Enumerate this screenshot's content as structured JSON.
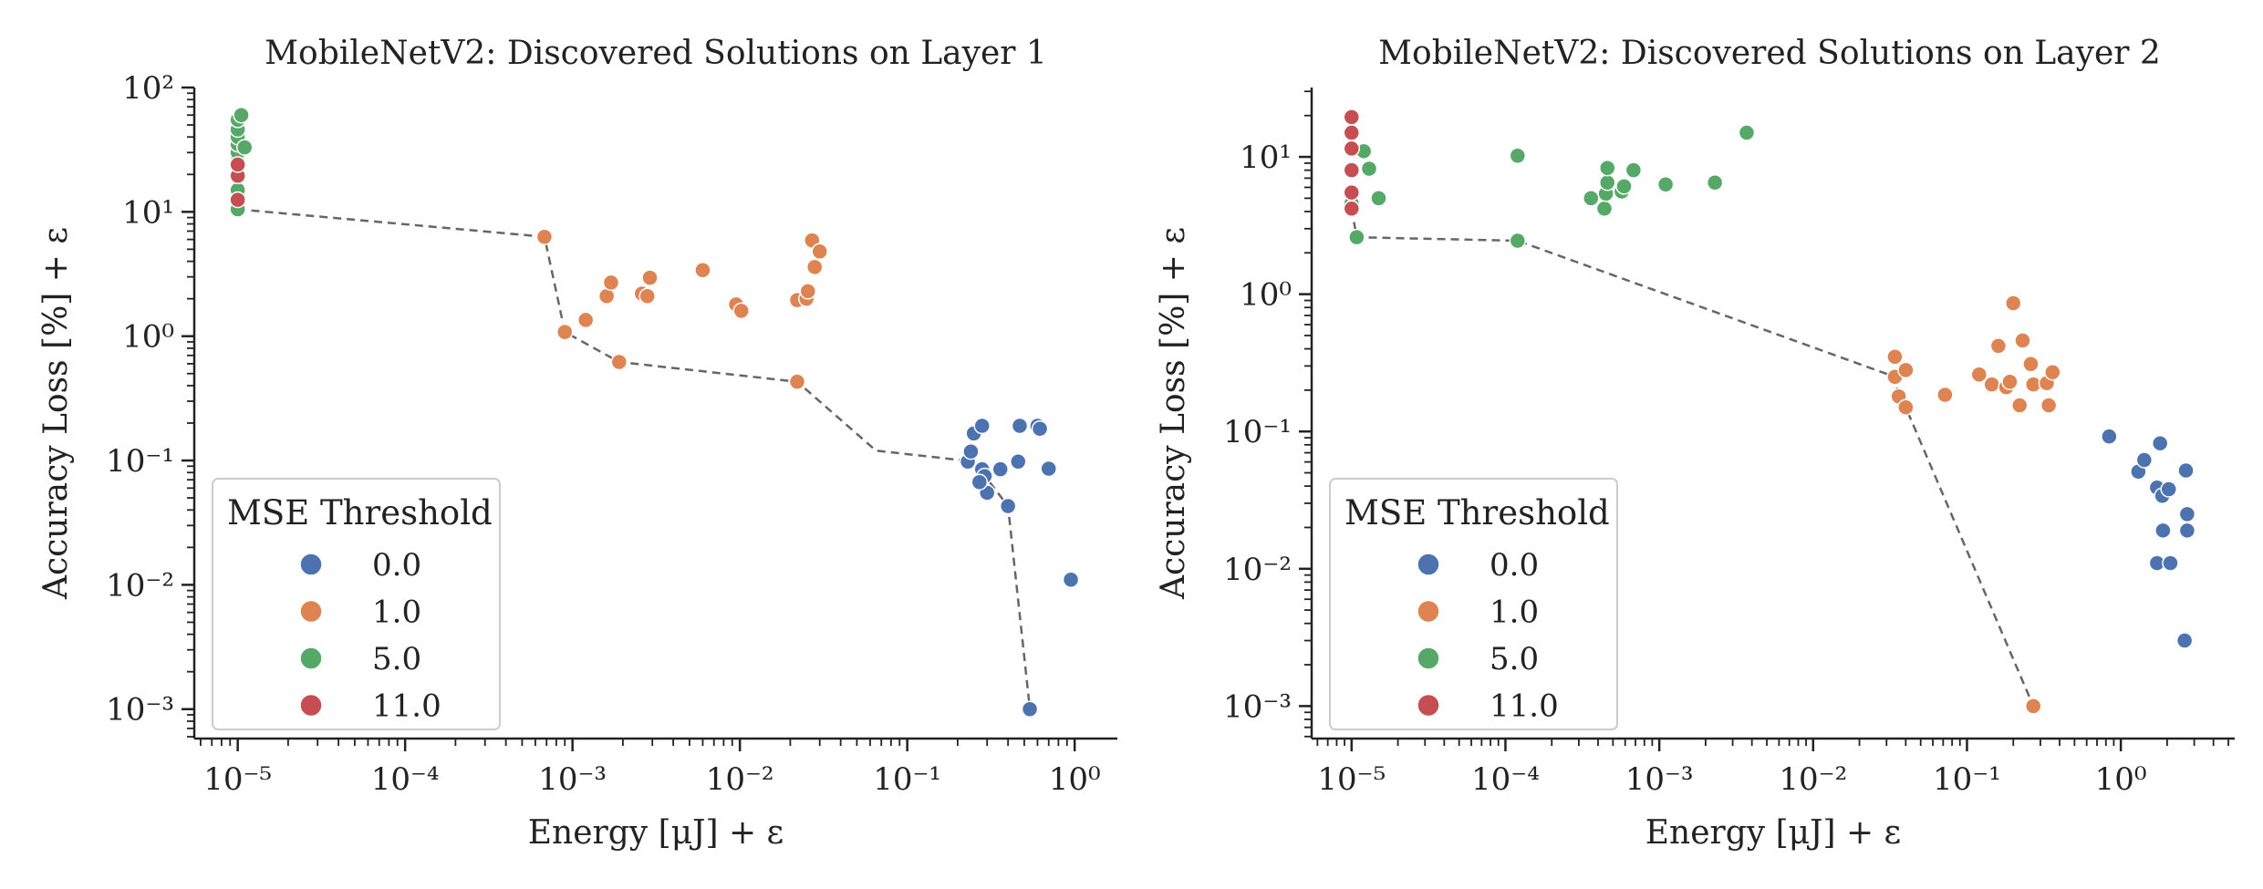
{
  "chart_data": [
    {
      "type": "scatter",
      "title": "MobileNetV2: Discovered Solutions on Layer 1",
      "xlabel": "Energy [μJ] + ε",
      "ylabel": "Accuracy Loss [%] + ε",
      "xscale": "log",
      "yscale": "log",
      "xlim": [
        5.5e-06,
        1.8
      ],
      "ylim": [
        0.00058,
        100
      ],
      "xticks": [
        "10⁻⁵",
        "10⁻⁴",
        "10⁻³",
        "10⁻²",
        "10⁻¹",
        "10⁰"
      ],
      "yticks": [
        "10⁻³",
        "10⁻²",
        "10⁻¹",
        "10⁰",
        "10¹",
        "10²"
      ],
      "legend": {
        "title": "MSE Threshold",
        "placement": "lower-left",
        "entries": [
          {
            "label": "0.0",
            "color": "#4c72b0"
          },
          {
            "label": "1.0",
            "color": "#dd8452"
          },
          {
            "label": "5.0",
            "color": "#55a868"
          },
          {
            "label": "11.0",
            "color": "#c44e52"
          }
        ]
      },
      "series": [
        {
          "name": "0.0",
          "color": "#4c72b0",
          "points": [
            [
              0.23,
              0.098
            ],
            [
              0.24,
              0.118
            ],
            [
              0.25,
              0.165
            ],
            [
              0.28,
              0.085
            ],
            [
              0.29,
              0.075
            ],
            [
              0.28,
              0.19
            ],
            [
              0.3,
              0.055
            ],
            [
              0.36,
              0.085
            ],
            [
              0.4,
              0.043
            ],
            [
              0.46,
              0.098
            ],
            [
              0.47,
              0.19
            ],
            [
              0.6,
              0.19
            ],
            [
              0.62,
              0.18
            ],
            [
              0.7,
              0.086
            ],
            [
              0.54,
              0.001
            ],
            [
              0.95,
              0.011
            ],
            [
              0.27,
              0.067
            ]
          ]
        },
        {
          "name": "1.0",
          "color": "#dd8452",
          "points": [
            [
              0.00068,
              6.3
            ],
            [
              0.0009,
              1.08
            ],
            [
              0.0012,
              1.35
            ],
            [
              0.0016,
              2.1
            ],
            [
              0.0017,
              2.7
            ],
            [
              0.0019,
              0.62
            ],
            [
              0.0026,
              2.2
            ],
            [
              0.0028,
              2.1
            ],
            [
              0.0029,
              2.95
            ],
            [
              0.006,
              3.4
            ],
            [
              0.0095,
              1.8
            ],
            [
              0.0102,
              1.6
            ],
            [
              0.022,
              0.43
            ],
            [
              0.022,
              1.95
            ],
            [
              0.025,
              2.0
            ],
            [
              0.0255,
              2.3
            ],
            [
              0.027,
              5.9
            ],
            [
              0.028,
              3.6
            ],
            [
              0.03,
              4.8
            ]
          ]
        },
        {
          "name": "5.0",
          "color": "#55a868",
          "points": [
            [
              1e-05,
              10.5
            ],
            [
              1e-05,
              13
            ],
            [
              1e-05,
              15
            ],
            [
              1e-05,
              20
            ],
            [
              1e-05,
              25
            ],
            [
              1e-05,
              28
            ],
            [
              1e-05,
              30
            ],
            [
              1e-05,
              35
            ],
            [
              1e-05,
              40
            ],
            [
              1e-05,
              46
            ],
            [
              1e-05,
              55
            ],
            [
              1.05e-05,
              60
            ],
            [
              1.1e-05,
              33
            ]
          ]
        },
        {
          "name": "11.0",
          "color": "#c44e52",
          "points": [
            [
              1e-05,
              19.5
            ],
            [
              1e-05,
              24
            ],
            [
              1e-05,
              12.5
            ]
          ]
        }
      ],
      "pareto_front": [
        [
          1e-05,
          10.5
        ],
        [
          0.00068,
          6.3
        ],
        [
          0.0009,
          1.08
        ],
        [
          0.0019,
          0.62
        ],
        [
          0.022,
          0.43
        ],
        [
          0.065,
          0.12
        ],
        [
          0.25,
          0.098
        ],
        [
          0.4,
          0.043
        ],
        [
          0.54,
          0.001
        ]
      ]
    },
    {
      "type": "scatter",
      "title": "MobileNetV2: Discovered Solutions on Layer 2",
      "xlabel": "Energy [μJ] + ε",
      "ylabel": "Accuracy Loss [%] + ε",
      "xscale": "log",
      "yscale": "log",
      "xlim": [
        5.5e-06,
        5.5
      ],
      "ylim": [
        0.00058,
        32
      ],
      "xticks": [
        "10⁻⁵",
        "10⁻⁴",
        "10⁻³",
        "10⁻²",
        "10⁻¹",
        "10⁰"
      ],
      "yticks": [
        "10⁻³",
        "10⁻²",
        "10⁻¹",
        "10⁰",
        "10¹"
      ],
      "legend": {
        "title": "MSE Threshold",
        "placement": "lower-left",
        "entries": [
          {
            "label": "0.0",
            "color": "#4c72b0"
          },
          {
            "label": "1.0",
            "color": "#dd8452"
          },
          {
            "label": "5.0",
            "color": "#55a868"
          },
          {
            "label": "11.0",
            "color": "#c44e52"
          }
        ]
      },
      "series": [
        {
          "name": "0.0",
          "color": "#4c72b0",
          "points": [
            [
              0.84,
              0.092
            ],
            [
              1.3,
              0.051
            ],
            [
              1.42,
              0.062
            ],
            [
              1.72,
              0.039
            ],
            [
              1.8,
              0.082
            ],
            [
              1.86,
              0.034
            ],
            [
              1.88,
              0.019
            ],
            [
              1.72,
              0.011
            ],
            [
              2.1,
              0.011
            ],
            [
              2.05,
              0.038
            ],
            [
              2.65,
              0.052
            ],
            [
              2.7,
              0.025
            ],
            [
              2.7,
              0.019
            ],
            [
              2.6,
              0.003
            ]
          ]
        },
        {
          "name": "1.0",
          "color": "#dd8452",
          "points": [
            [
              0.034,
              0.35
            ],
            [
              0.034,
              0.25
            ],
            [
              0.036,
              0.18
            ],
            [
              0.04,
              0.28
            ],
            [
              0.04,
              0.15
            ],
            [
              0.072,
              0.185
            ],
            [
              0.12,
              0.26
            ],
            [
              0.145,
              0.22
            ],
            [
              0.16,
              0.42
            ],
            [
              0.18,
              0.21
            ],
            [
              0.19,
              0.23
            ],
            [
              0.2,
              0.86
            ],
            [
              0.22,
              0.155
            ],
            [
              0.23,
              0.46
            ],
            [
              0.26,
              0.31
            ],
            [
              0.27,
              0.22
            ],
            [
              0.33,
              0.225
            ],
            [
              0.36,
              0.27
            ],
            [
              0.34,
              0.155
            ],
            [
              0.27,
              0.001
            ]
          ]
        },
        {
          "name": "5.0",
          "color": "#55a868",
          "points": [
            [
              1e-05,
              4.6
            ],
            [
              1.08e-05,
              2.6
            ],
            [
              1.2e-05,
              11
            ],
            [
              1.3e-05,
              8.2
            ],
            [
              1.5e-05,
              5
            ],
            [
              0.00012,
              10.2
            ],
            [
              0.00012,
              2.45
            ],
            [
              0.00036,
              5
            ],
            [
              0.00044,
              4.2
            ],
            [
              0.00045,
              5.4
            ],
            [
              0.00046,
              6.5
            ],
            [
              0.00046,
              8.3
            ],
            [
              0.00057,
              5.6
            ],
            [
              0.00059,
              6.1
            ],
            [
              0.00068,
              8
            ],
            [
              0.0011,
              6.3
            ],
            [
              0.0023,
              6.5
            ],
            [
              0.0037,
              15
            ]
          ]
        },
        {
          "name": "11.0",
          "color": "#c44e52",
          "points": [
            [
              1e-05,
              19.5
            ],
            [
              1e-05,
              15
            ],
            [
              1e-05,
              11.5
            ],
            [
              1e-05,
              8
            ],
            [
              1e-05,
              5.5
            ],
            [
              1e-05,
              4.2
            ]
          ]
        }
      ],
      "pareto_front": [
        [
          1e-05,
          4.2
        ],
        [
          1.08e-05,
          2.6
        ],
        [
          0.00012,
          2.45
        ],
        [
          0.034,
          0.25
        ],
        [
          0.036,
          0.18
        ],
        [
          0.04,
          0.15
        ],
        [
          0.27,
          0.001
        ]
      ]
    }
  ]
}
